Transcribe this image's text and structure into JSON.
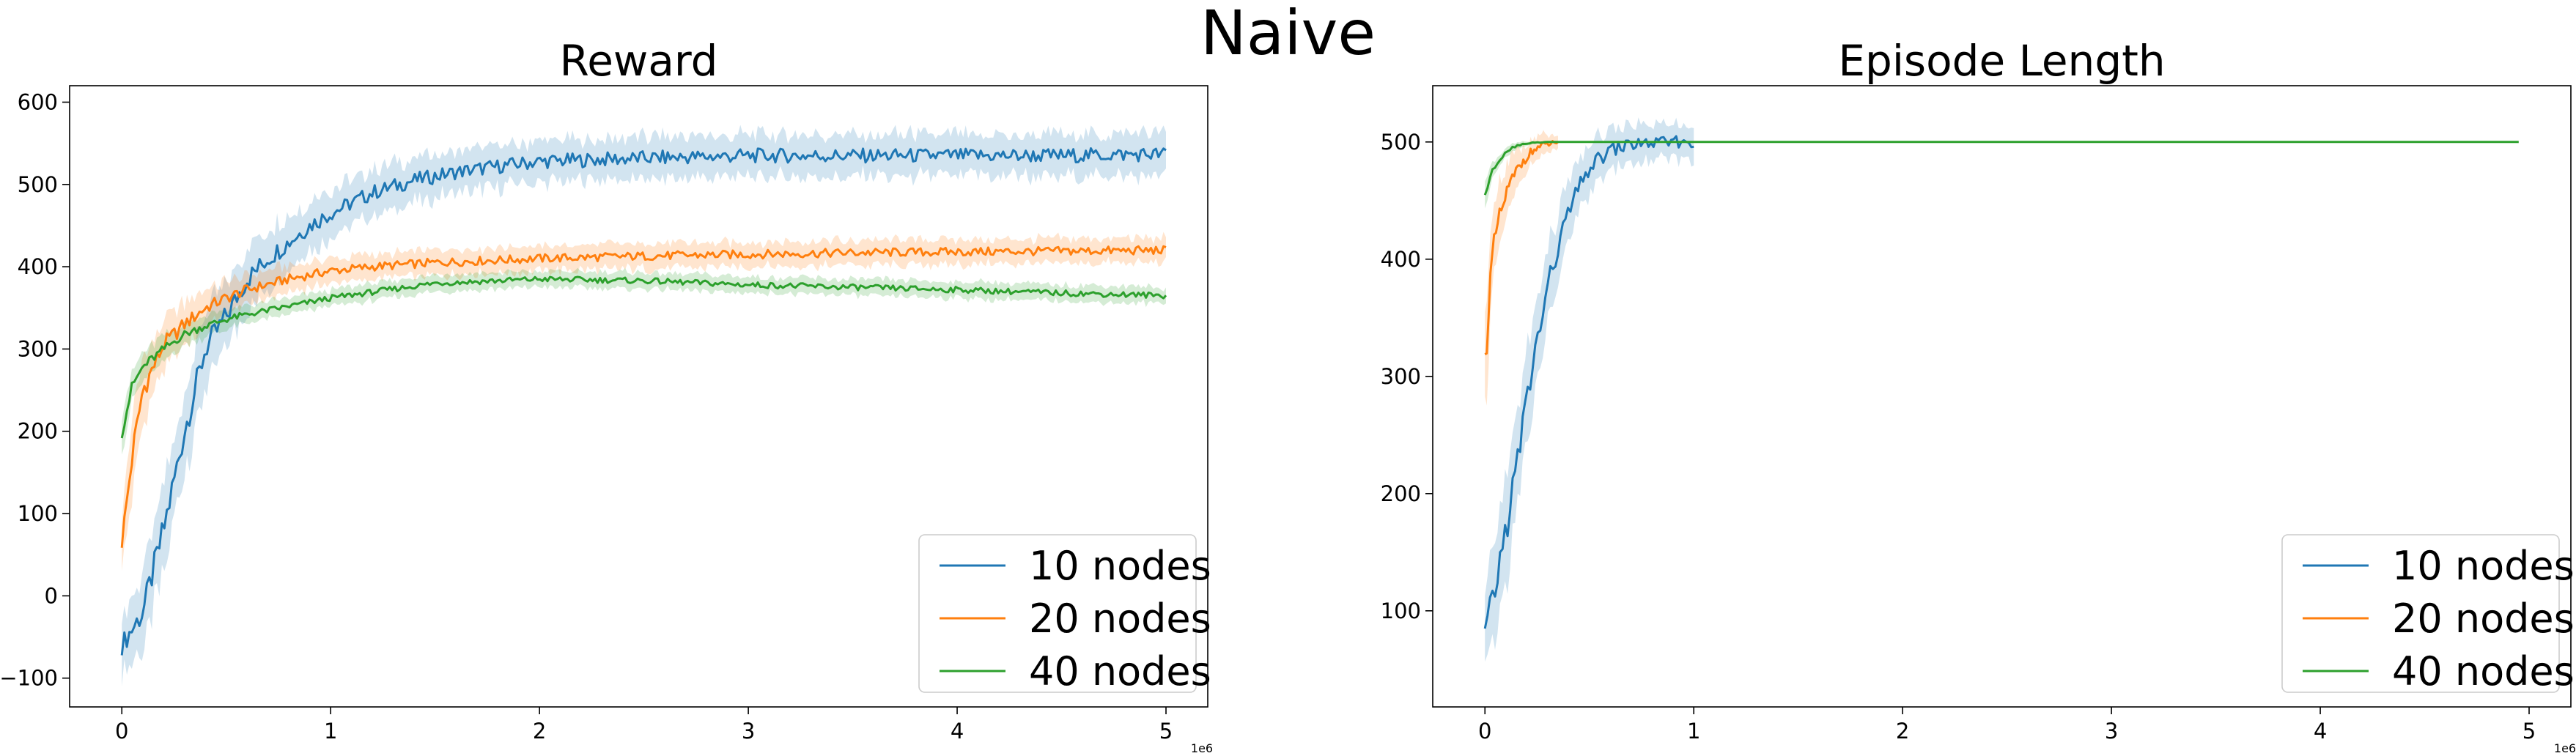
{
  "figure": {
    "suptitle": "Naive"
  },
  "chart_data": [
    {
      "type": "line",
      "title": "Reward",
      "xlabel": "",
      "ylabel": "",
      "x_range": [
        -250000,
        5200000
      ],
      "ylim": [
        -135,
        620
      ],
      "x_ticks": [
        0,
        1000000,
        2000000,
        3000000,
        4000000,
        5000000
      ],
      "x_tick_labels": [
        "0",
        "1",
        "2",
        "3",
        "4",
        "5"
      ],
      "x_offset_label": "1e6",
      "y_ticks": [
        -100,
        0,
        100,
        200,
        300,
        400,
        500,
        600
      ],
      "y_tick_labels": [
        "−100",
        "0",
        "100",
        "200",
        "300",
        "400",
        "500",
        "600"
      ],
      "grid": false,
      "legend_position": "lower-right",
      "series": [
        {
          "name": "10 nodes",
          "color": "#1f77b4",
          "x": [
            0,
            100000,
            200000,
            300000,
            400000,
            500000,
            600000,
            700000,
            800000,
            900000,
            1000000,
            1200000,
            1400000,
            1600000,
            1800000,
            2000000,
            2500000,
            3000000,
            3500000,
            4000000,
            4500000,
            5000000
          ],
          "y": [
            -60,
            -20,
            80,
            200,
            300,
            340,
            385,
            410,
            430,
            450,
            465,
            490,
            505,
            515,
            522,
            528,
            532,
            535,
            535,
            535,
            535,
            537
          ],
          "spread": [
            35,
            45,
            55,
            50,
            45,
            40,
            38,
            35,
            32,
            30,
            28,
            27,
            26,
            25,
            25,
            25,
            25,
            25,
            25,
            25,
            25,
            25
          ]
        },
        {
          "name": "20 nodes",
          "color": "#ff7f0e",
          "x": [
            0,
            50000,
            100000,
            200000,
            300000,
            400000,
            500000,
            600000,
            800000,
            1000000,
            1200000,
            1500000,
            2000000,
            2500000,
            3000000,
            3500000,
            4000000,
            4500000,
            5000000
          ],
          "y": [
            65,
            170,
            250,
            305,
            330,
            350,
            362,
            372,
            385,
            395,
            400,
            405,
            410,
            413,
            415,
            417,
            418,
            419,
            420
          ],
          "spread": [
            30,
            45,
            40,
            30,
            25,
            22,
            20,
            18,
            16,
            15,
            15,
            15,
            15,
            15,
            15,
            15,
            15,
            15,
            15
          ]
        },
        {
          "name": "40 nodes",
          "color": "#2ca02c",
          "x": [
            0,
            50000,
            100000,
            200000,
            300000,
            400000,
            500000,
            600000,
            800000,
            1000000,
            1500000,
            2000000,
            2500000,
            3000000,
            3500000,
            4000000,
            4500000,
            5000000
          ],
          "y": [
            200,
            255,
            278,
            300,
            318,
            328,
            336,
            342,
            352,
            362,
            380,
            385,
            383,
            378,
            375,
            372,
            368,
            365
          ],
          "spread": [
            25,
            20,
            18,
            15,
            14,
            13,
            12,
            11,
            10,
            10,
            10,
            10,
            10,
            10,
            10,
            10,
            10,
            10
          ]
        }
      ]
    },
    {
      "type": "line",
      "title": "Episode Length",
      "xlabel": "",
      "ylabel": "",
      "x_range": [
        -250000,
        5200000
      ],
      "ylim": [
        18,
        548
      ],
      "x_ticks": [
        0,
        1000000,
        2000000,
        3000000,
        4000000,
        5000000
      ],
      "x_tick_labels": [
        "0",
        "1",
        "2",
        "3",
        "4",
        "5"
      ],
      "x_offset_label": "1e6",
      "y_ticks": [
        100,
        200,
        300,
        400,
        500
      ],
      "y_tick_labels": [
        "100",
        "200",
        "300",
        "400",
        "500"
      ],
      "grid": false,
      "legend_position": "lower-right",
      "series": [
        {
          "name": "10 nodes",
          "color": "#1f77b4",
          "x": [
            0,
            50000,
            100000,
            150000,
            200000,
            250000,
            300000,
            350000,
            400000,
            450000,
            500000,
            600000,
            700000,
            800000,
            900000,
            1000000
          ],
          "y": [
            80,
            120,
            170,
            220,
            280,
            330,
            375,
            410,
            440,
            460,
            478,
            493,
            498,
            499,
            500,
            500
          ],
          "spread": [
            30,
            40,
            45,
            45,
            40,
            35,
            30,
            28,
            25,
            22,
            20,
            18,
            16,
            15,
            14,
            14
          ]
        },
        {
          "name": "20 nodes",
          "color": "#ff7f0e",
          "x": [
            0,
            25000,
            50000,
            100000,
            150000,
            200000,
            250000,
            300000,
            350000
          ],
          "y": [
            310,
            380,
            420,
            455,
            475,
            488,
            495,
            498,
            500
          ],
          "spread": [
            45,
            40,
            30,
            22,
            16,
            12,
            10,
            8,
            5
          ]
        },
        {
          "name": "40 nodes",
          "color": "#2ca02c",
          "x": [
            0,
            25000,
            50000,
            100000,
            150000,
            200000,
            300000,
            500000,
            1000000,
            2000000,
            3000000,
            4000000,
            4950000
          ],
          "y": [
            455,
            470,
            480,
            492,
            497,
            499,
            500,
            500,
            500,
            500,
            500,
            500,
            500
          ],
          "spread": [
            10,
            8,
            6,
            4,
            3,
            2,
            0,
            0,
            0,
            0,
            0,
            0,
            0
          ]
        }
      ]
    }
  ]
}
